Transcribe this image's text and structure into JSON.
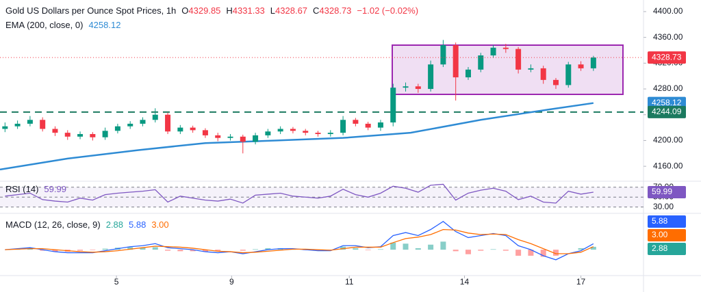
{
  "chart_data": {
    "type": "candlestick",
    "title": "Gold US Dollars per Ounce Spot Prices, 1h",
    "ohlc_labels": [
      "O",
      "H",
      "L",
      "C"
    ],
    "last_bar": {
      "open": 4329.85,
      "high": 4331.33,
      "low": 4328.67,
      "close": 4328.73,
      "change": "−1.02 (−0.02%)"
    },
    "up_color": "#089981",
    "down_color": "#f23645",
    "x": [
      2,
      7,
      12,
      17,
      22,
      27,
      32,
      37,
      42,
      47,
      52,
      57,
      62,
      67,
      72,
      77,
      82,
      87,
      92,
      97,
      102,
      107,
      112,
      117,
      122,
      127,
      132,
      137,
      142,
      147,
      152,
      157,
      162,
      167,
      172,
      177,
      182,
      187,
      192,
      197,
      202,
      207,
      212,
      217,
      222,
      227,
      232,
      237
    ],
    "open": [
      4218,
      4222,
      4226,
      4232,
      4218,
      4212,
      4206,
      4210,
      4205,
      4215,
      4222,
      4226,
      4232,
      4240,
      4214,
      4220,
      4216,
      4208,
      4204,
      4206,
      4198,
      4208,
      4214,
      4218,
      4215,
      4212,
      4210,
      4212,
      4232,
      4226,
      4220,
      4228,
      4282,
      4284,
      4280,
      4318,
      4348,
      4298,
      4310,
      4332,
      4344,
      4342,
      4310,
      4312,
      4294,
      4286,
      4318,
      4312
    ],
    "high": [
      4228,
      4231,
      4238,
      4236,
      4222,
      4216,
      4214,
      4213,
      4220,
      4226,
      4230,
      4236,
      4250,
      4243,
      4224,
      4223,
      4219,
      4212,
      4210,
      4209,
      4212,
      4218,
      4222,
      4221,
      4218,
      4215,
      4216,
      4238,
      4235,
      4229,
      4232,
      4288,
      4290,
      4288,
      4324,
      4356,
      4352,
      4314,
      4336,
      4348,
      4350,
      4345,
      4318,
      4316,
      4297,
      4322,
      4323,
      4331.33
    ],
    "low": [
      4213,
      4218,
      4222,
      4214,
      4207,
      4201,
      4202,
      4200,
      4201,
      4211,
      4218,
      4222,
      4228,
      4210,
      4210,
      4212,
      4204,
      4199,
      4200,
      4180,
      4194,
      4204,
      4210,
      4211,
      4208,
      4206,
      4206,
      4208,
      4222,
      4216,
      4215,
      4222,
      4276,
      4274,
      4276,
      4314,
      4262,
      4294,
      4306,
      4328,
      4336,
      4304,
      4306,
      4288,
      4280,
      4282,
      4308,
      4308
    ],
    "close": [
      4222,
      4226,
      4232,
      4218,
      4212,
      4206,
      4210,
      4205,
      4215,
      4222,
      4226,
      4232,
      4240,
      4214,
      4220,
      4216,
      4208,
      4204,
      4206,
      4198,
      4208,
      4214,
      4218,
      4215,
      4212,
      4210,
      4212,
      4232,
      4226,
      4220,
      4228,
      4282,
      4284,
      4280,
      4318,
      4348,
      4298,
      4310,
      4332,
      4344,
      4342,
      4310,
      4312,
      4294,
      4286,
      4318,
      4312,
      4328.73
    ],
    "xlim": [
      0,
      257
    ],
    "xticks": [
      {
        "value": 46.5,
        "label": "5"
      },
      {
        "value": 92.5,
        "label": "9"
      },
      {
        "value": 139.5,
        "label": "11"
      },
      {
        "value": 185.5,
        "label": "14"
      },
      {
        "value": 232,
        "label": "17"
      }
    ],
    "ylim": [
      4140,
      4418
    ],
    "yticks": [
      {
        "value": 4160,
        "label": "4160.00"
      },
      {
        "value": 4200,
        "label": "4200.00"
      },
      {
        "value": 4240,
        "label": "4240.00"
      },
      {
        "value": 4280,
        "label": "4280.00"
      },
      {
        "value": 4320,
        "label": "4320.00"
      },
      {
        "value": 4360,
        "label": "4360.00"
      },
      {
        "value": 4400,
        "label": "4400.00"
      }
    ],
    "ema": {
      "name": "EMA (200, close, 0)",
      "color": "#2e8bd4",
      "x": [
        0,
        27,
        55,
        82,
        110,
        137,
        164,
        192,
        219,
        237
      ],
      "values": [
        4155,
        4172,
        4185,
        4196,
        4200,
        4204,
        4212,
        4232,
        4248,
        4258.12
      ]
    },
    "hline": {
      "value": 4244.09,
      "color": "#1b7a5f"
    },
    "rsi": {
      "name": "RSI (14)",
      "color": "#7e57c2",
      "ylim": [
        20,
        78
      ],
      "yticks": [
        {
          "value": 70,
          "label": "70.00"
        },
        {
          "value": 50,
          "label": "50.00"
        },
        {
          "value": 30,
          "label": "30.00"
        }
      ],
      "values": [
        52,
        55,
        58,
        45,
        42,
        40,
        48,
        44,
        55,
        58,
        60,
        62,
        65,
        40,
        52,
        48,
        44,
        42,
        46,
        38,
        54,
        56,
        58,
        52,
        50,
        48,
        52,
        66,
        55,
        50,
        58,
        72,
        68,
        60,
        74,
        76,
        44,
        58,
        64,
        68,
        62,
        45,
        52,
        40,
        38,
        62,
        56,
        59.99
      ]
    },
    "macd": {
      "name": "MACD (12, 26, close, 9)",
      "ylim": [
        -25,
        34
      ],
      "histogram": {
        "up_color": "#26a69a",
        "down_color": "#ff5252",
        "values": [
          0,
          0.5,
          1,
          -1,
          -2,
          -2,
          -1,
          -0.5,
          1,
          2,
          2.5,
          2,
          2.5,
          -1,
          -1.5,
          -1.5,
          -2,
          -1.5,
          0,
          -1,
          0.5,
          1.5,
          1.5,
          0.5,
          -0.5,
          -1,
          -0.5,
          3,
          1.5,
          -0.5,
          0.5,
          7,
          6,
          1.5,
          5,
          8,
          -1.5,
          -4.5,
          -1,
          0.5,
          -1,
          -6,
          -6,
          -7,
          -6,
          0,
          1.5,
          2.88
        ]
      },
      "macd_line": {
        "color": "#2962ff",
        "values": [
          0,
          1,
          2,
          0,
          -2,
          -3,
          -3,
          -3,
          -1,
          1,
          3,
          4,
          6,
          2,
          1,
          0,
          -2,
          -3,
          -2,
          -4,
          -2,
          0,
          1,
          1,
          0,
          -1,
          -1,
          4,
          4,
          2,
          3,
          14,
          17,
          14,
          20,
          28,
          18,
          12,
          14,
          16,
          14,
          4,
          0,
          -6,
          -10,
          -4,
          -1,
          5.88
        ]
      },
      "signal": {
        "color": "#ff6d00",
        "last_value_label": "3.00",
        "values": [
          0,
          0.5,
          1,
          1,
          0,
          -1,
          -2,
          -2.5,
          -2,
          -1,
          0.5,
          2,
          3.5,
          3,
          2.5,
          1.5,
          0,
          -1.5,
          -2,
          -3,
          -2.5,
          -1.5,
          -0.5,
          0.5,
          0.5,
          0,
          -0.5,
          1,
          2.5,
          2.5,
          2.5,
          7,
          11,
          12.5,
          15,
          20,
          19.5,
          16.5,
          15,
          15.5,
          15,
          10,
          6,
          1,
          -4,
          -4,
          -2.5,
          3
        ]
      }
    }
  }
}
